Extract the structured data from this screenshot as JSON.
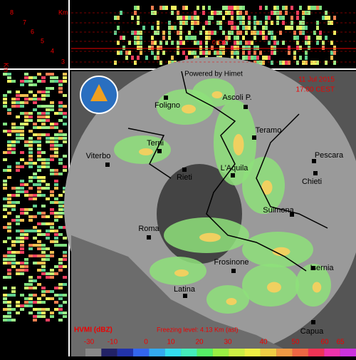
{
  "vertical_profile": {
    "altitude_labels": [
      "8",
      "7",
      "6",
      "5",
      "4",
      "3"
    ],
    "unit": "Km",
    "side_unit": "Km",
    "freezing_marker": "0 CA°"
  },
  "map": {
    "credit": "Powered by Himet",
    "date": "11 Jul 2015",
    "time": "17:00 CEST",
    "cities": [
      "Foligno",
      "Ascoli P.",
      "Teramo",
      "Terni",
      "Viterbo",
      "Pescara",
      "Rieti",
      "L'Aquila",
      "Chieti",
      "Sulmona",
      "Roma",
      "Frosinone",
      "Isernia",
      "Latina",
      "Capua"
    ]
  },
  "legend": {
    "title": "HVMI (dBZ)",
    "freezing_level": "Freezing level: 4.13 Km (asl)",
    "ticks": [
      -30,
      -10,
      0,
      10,
      20,
      30,
      40,
      50,
      60,
      65
    ]
  }
}
